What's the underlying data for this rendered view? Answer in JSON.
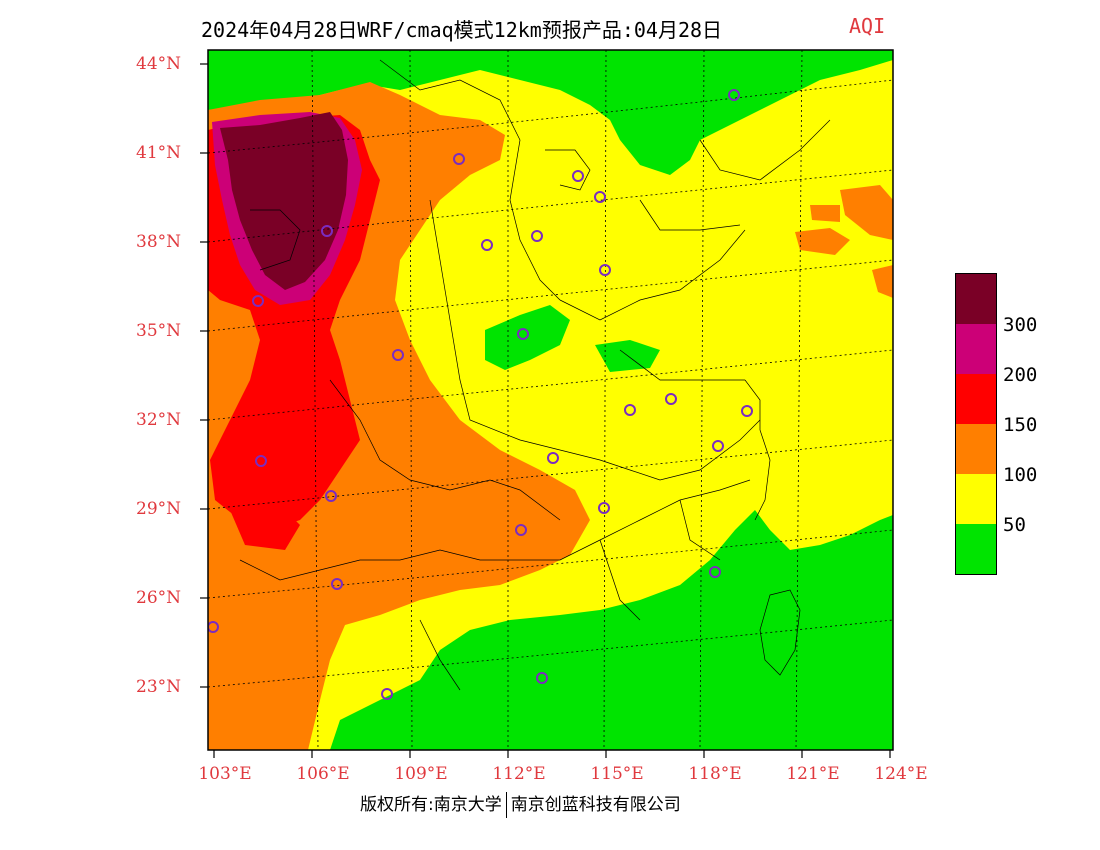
{
  "title": {
    "main": "2024年04月28日WRF/cmaq模式12km预报产品:04月28日",
    "variable": "AQI"
  },
  "axes": {
    "lat_labels": [
      "44°N",
      "41°N",
      "38°N",
      "35°N",
      "32°N",
      "29°N",
      "26°N",
      "23°N"
    ],
    "lon_labels": [
      "103°E",
      "106°E",
      "109°E",
      "112°E",
      "115°E",
      "118°E",
      "121°E",
      "124°E"
    ],
    "lat_range": [
      21.0,
      44.5
    ],
    "lon_range": [
      103.0,
      124.0
    ]
  },
  "legend": {
    "classes": [
      {
        "color": "#7a0026",
        "label": ""
      },
      {
        "color": "#cc0077",
        "label": "300"
      },
      {
        "color": "#ff0000",
        "label": "200"
      },
      {
        "color": "#ff7f00",
        "label": "150"
      },
      {
        "color": "#ffff00",
        "label": "100"
      },
      {
        "color": "#00e400",
        "label": "50"
      }
    ]
  },
  "colors": {
    "good": "#00e400",
    "moderate": "#ffff00",
    "usg": "#ff7f00",
    "unhealthy": "#ff0000",
    "very_unhealthy": "#cc0077",
    "hazardous": "#7a0026",
    "label_red": "#e0393e",
    "station_marker": "#7b2cbf"
  },
  "footer": {
    "left": "版权所有:南京大学",
    "right": "南京创蓝科技有限公司"
  }
}
